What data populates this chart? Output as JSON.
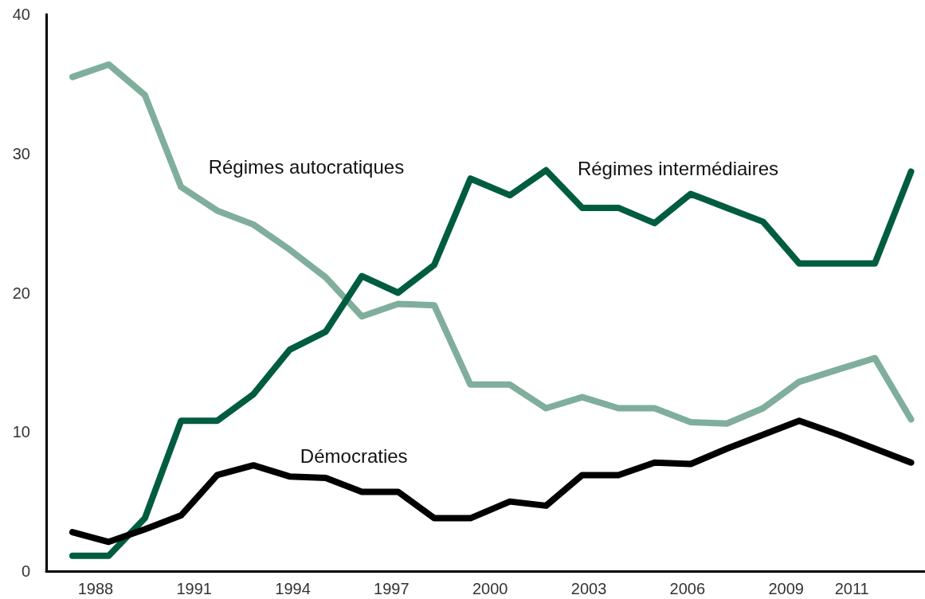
{
  "chart_data": {
    "type": "line",
    "x": [
      1987.3,
      1988.4,
      1989.5,
      1990.6,
      1991.7,
      1992.8,
      1993.9,
      1995.0,
      1996.1,
      1997.2,
      1998.3,
      1999.4,
      2000.6,
      2001.7,
      2002.8,
      2003.9,
      2005.0,
      2006.1,
      2007.2,
      2008.3,
      2009.4,
      2010.6,
      2011.7,
      2012.8
    ],
    "series": [
      {
        "name": "Régimes autocratiques",
        "color": "#80ae9c",
        "values": [
          35.5,
          36.4,
          34.2,
          27.6,
          25.9,
          24.9,
          23.1,
          21.1,
          18.3,
          19.2,
          19.1,
          13.4,
          13.4,
          11.7,
          12.5,
          11.7,
          11.7,
          10.7,
          10.6,
          11.7,
          13.6,
          14.5,
          15.3,
          10.9
        ]
      },
      {
        "name": "Régimes intermédiaires",
        "color": "#005c40",
        "values": [
          1.1,
          1.1,
          3.8,
          10.8,
          10.8,
          12.7,
          15.9,
          17.2,
          21.2,
          20.0,
          22.0,
          28.2,
          27.0,
          28.8,
          26.1,
          26.1,
          25.0,
          27.1,
          26.1,
          25.1,
          22.1,
          22.1,
          22.1,
          28.7
        ]
      },
      {
        "name": "Démocraties",
        "color": "#000000",
        "values": [
          2.8,
          2.1,
          3.0,
          4.0,
          6.9,
          7.6,
          6.8,
          6.7,
          5.7,
          5.7,
          3.8,
          3.8,
          5.0,
          4.7,
          6.9,
          6.9,
          7.8,
          7.7,
          8.8,
          9.8,
          10.8,
          9.8,
          8.8,
          7.8
        ]
      }
    ],
    "xlim": [
      1986.5,
      2013.2
    ],
    "xticks": [
      1988,
      1991,
      1994,
      1997,
      2000,
      2003,
      2006,
      2009,
      2011
    ],
    "ylim": [
      0,
      40
    ],
    "yticks": [
      0,
      10,
      20,
      30,
      40
    ],
    "grid": false,
    "marker": "none",
    "line_style": "solid"
  }
}
